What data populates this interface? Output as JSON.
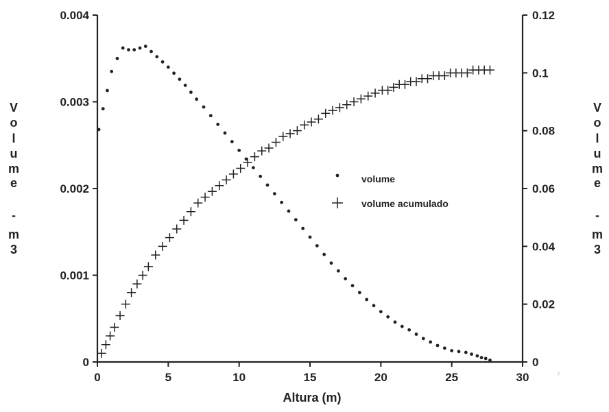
{
  "chart_data": {
    "type": "scatter",
    "title": "",
    "xlabel": "Altura (m)",
    "ylabel_left": [
      "V",
      "o",
      "l",
      "u",
      "m",
      "e",
      "-",
      "m",
      "3"
    ],
    "ylabel_right": [
      "V",
      "o",
      "l",
      "u",
      "m",
      "e",
      "-",
      "m",
      "3"
    ],
    "xlim": [
      0,
      30
    ],
    "ylim_left": [
      0,
      0.004
    ],
    "ylim_right": [
      0,
      0.12
    ],
    "x_ticks": [
      "0",
      "5",
      "10",
      "15",
      "20",
      "25",
      "30"
    ],
    "y_left_ticks": [
      "0",
      "0.001",
      "0.002",
      "0.003",
      "0.004"
    ],
    "y_right_ticks": [
      "0",
      "0.02",
      "0.04",
      "0.06",
      "0.08",
      "0.1",
      "0.12"
    ],
    "grid": false,
    "legend_position": "center-right",
    "series": [
      {
        "name": "volume",
        "axis": "left",
        "marker": "dot",
        "color": "#222222",
        "x": [
          0.1,
          0.4,
          0.7,
          1.0,
          1.4,
          1.8,
          2.2,
          2.6,
          3.0,
          3.4,
          3.8,
          4.2,
          4.6,
          5.0,
          5.4,
          5.8,
          6.2,
          6.6,
          7.0,
          7.5,
          8.0,
          8.5,
          9.0,
          9.5,
          10.0,
          10.5,
          11.0,
          11.5,
          12.0,
          12.5,
          13.0,
          13.5,
          14.0,
          14.5,
          15.0,
          15.5,
          16.0,
          16.5,
          17.0,
          17.5,
          18.0,
          18.5,
          19.0,
          19.5,
          20.0,
          20.5,
          21.0,
          21.5,
          22.0,
          22.5,
          23.0,
          23.5,
          24.0,
          24.5,
          25.0,
          25.5,
          26.0,
          26.4,
          26.8,
          27.1,
          27.4,
          27.7
        ],
        "values": [
          0.00268,
          0.00292,
          0.00313,
          0.00335,
          0.0035,
          0.00362,
          0.0036,
          0.0036,
          0.00362,
          0.00364,
          0.00358,
          0.00352,
          0.00346,
          0.0034,
          0.00333,
          0.00326,
          0.00319,
          0.00311,
          0.00303,
          0.00294,
          0.00284,
          0.00274,
          0.00264,
          0.00254,
          0.00244,
          0.00234,
          0.00224,
          0.00214,
          0.00204,
          0.00194,
          0.00184,
          0.00174,
          0.00164,
          0.00154,
          0.00144,
          0.00134,
          0.00124,
          0.00114,
          0.00105,
          0.00096,
          0.00088,
          0.0008,
          0.00072,
          0.00065,
          0.00058,
          0.00052,
          0.00046,
          0.00041,
          0.00037,
          0.00032,
          0.00027,
          0.00023,
          0.00019,
          0.00016,
          0.00013,
          0.00012,
          0.00011,
          9e-05,
          7e-05,
          5e-05,
          4e-05,
          2e-05
        ]
      },
      {
        "name": "volume acumulado",
        "axis": "right",
        "marker": "plus",
        "color": "#222222",
        "x": [
          0.3,
          0.6,
          0.9,
          1.2,
          1.6,
          2.0,
          2.4,
          2.8,
          3.2,
          3.6,
          4.1,
          4.6,
          5.1,
          5.6,
          6.1,
          6.6,
          7.1,
          7.6,
          8.1,
          8.6,
          9.1,
          9.6,
          10.1,
          10.6,
          11.1,
          11.6,
          12.1,
          12.6,
          13.1,
          13.6,
          14.1,
          14.6,
          15.1,
          15.6,
          16.1,
          16.6,
          17.1,
          17.6,
          18.1,
          18.6,
          19.1,
          19.6,
          20.1,
          20.5,
          20.9,
          21.3,
          21.7,
          22.1,
          22.5,
          22.9,
          23.3,
          23.7,
          24.1,
          24.5,
          24.9,
          25.3,
          25.7,
          26.1,
          26.5,
          26.9,
          27.3,
          27.7
        ],
        "values": [
          0.003,
          0.006,
          0.009,
          0.012,
          0.016,
          0.02,
          0.024,
          0.027,
          0.03,
          0.033,
          0.037,
          0.04,
          0.043,
          0.046,
          0.049,
          0.052,
          0.055,
          0.057,
          0.059,
          0.061,
          0.063,
          0.065,
          0.067,
          0.069,
          0.071,
          0.073,
          0.074,
          0.076,
          0.078,
          0.079,
          0.08,
          0.082,
          0.083,
          0.084,
          0.086,
          0.087,
          0.088,
          0.089,
          0.09,
          0.091,
          0.092,
          0.093,
          0.094,
          0.094,
          0.095,
          0.096,
          0.096,
          0.097,
          0.097,
          0.098,
          0.098,
          0.099,
          0.099,
          0.099,
          0.1,
          0.1,
          0.1,
          0.1,
          0.101,
          0.101,
          0.101,
          0.101
        ]
      }
    ]
  },
  "stray_mark": "⁷",
  "stray_mark_color": "#bbbbbb"
}
